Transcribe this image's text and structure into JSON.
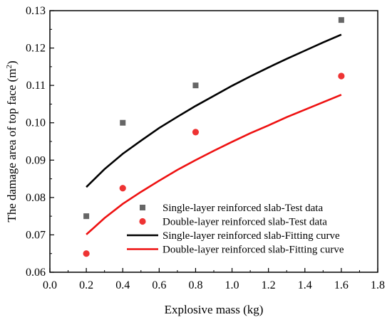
{
  "chart_data": {
    "type": "scatter",
    "xlabel": "Explosive mass (kg)",
    "ylabel": "The damage area of top face (m²)",
    "ylabel_main": "The damage area of top face (m",
    "ylabel_sup": "2",
    "ylabel_end": ")",
    "xlim": [
      0.0,
      1.8
    ],
    "ylim": [
      0.06,
      0.13
    ],
    "x_ticks": [
      "0.0",
      "0.2",
      "0.4",
      "0.6",
      "0.8",
      "1.0",
      "1.2",
      "1.4",
      "1.6",
      "1.8"
    ],
    "y_ticks": [
      "0.06",
      "0.07",
      "0.08",
      "0.09",
      "0.10",
      "0.11",
      "0.12",
      "0.13"
    ],
    "grid": false,
    "legend_position": "bottom-right",
    "series": [
      {
        "name": "Single-layer reinforced slab-Test data",
        "kind": "scatter",
        "marker": "square",
        "color": "#666666",
        "x": [
          0.2,
          0.4,
          0.8,
          1.6
        ],
        "y": [
          0.075,
          0.1,
          0.11,
          0.1275
        ]
      },
      {
        "name": "Double-layer reinforced slab-Test data",
        "kind": "scatter",
        "marker": "circle",
        "color": "#ee3333",
        "x": [
          0.2,
          0.4,
          0.8,
          1.6
        ],
        "y": [
          0.065,
          0.0825,
          0.0975,
          0.1125
        ]
      },
      {
        "name": "Single-layer reinforced slab-Fitting curve",
        "kind": "line",
        "color": "#000000",
        "x": [
          0.2,
          0.3,
          0.4,
          0.5,
          0.6,
          0.7,
          0.8,
          0.9,
          1.0,
          1.1,
          1.2,
          1.3,
          1.4,
          1.5,
          1.6
        ],
        "y": [
          0.0828,
          0.0876,
          0.0917,
          0.0952,
          0.0986,
          0.1016,
          0.1045,
          0.1072,
          0.1099,
          0.1124,
          0.1148,
          0.1171,
          0.1193,
          0.1215,
          0.1236
        ]
      },
      {
        "name": "Double-layer reinforced slab-Fitting curve",
        "kind": "line",
        "color": "#ee1111",
        "x": [
          0.2,
          0.3,
          0.4,
          0.5,
          0.6,
          0.7,
          0.8,
          0.9,
          1.0,
          1.1,
          1.2,
          1.3,
          1.4,
          1.5,
          1.6
        ],
        "y": [
          0.0701,
          0.0745,
          0.0783,
          0.0815,
          0.0845,
          0.0874,
          0.09,
          0.0925,
          0.0949,
          0.0972,
          0.0993,
          0.1015,
          0.1035,
          0.1055,
          0.1075
        ]
      }
    ]
  }
}
